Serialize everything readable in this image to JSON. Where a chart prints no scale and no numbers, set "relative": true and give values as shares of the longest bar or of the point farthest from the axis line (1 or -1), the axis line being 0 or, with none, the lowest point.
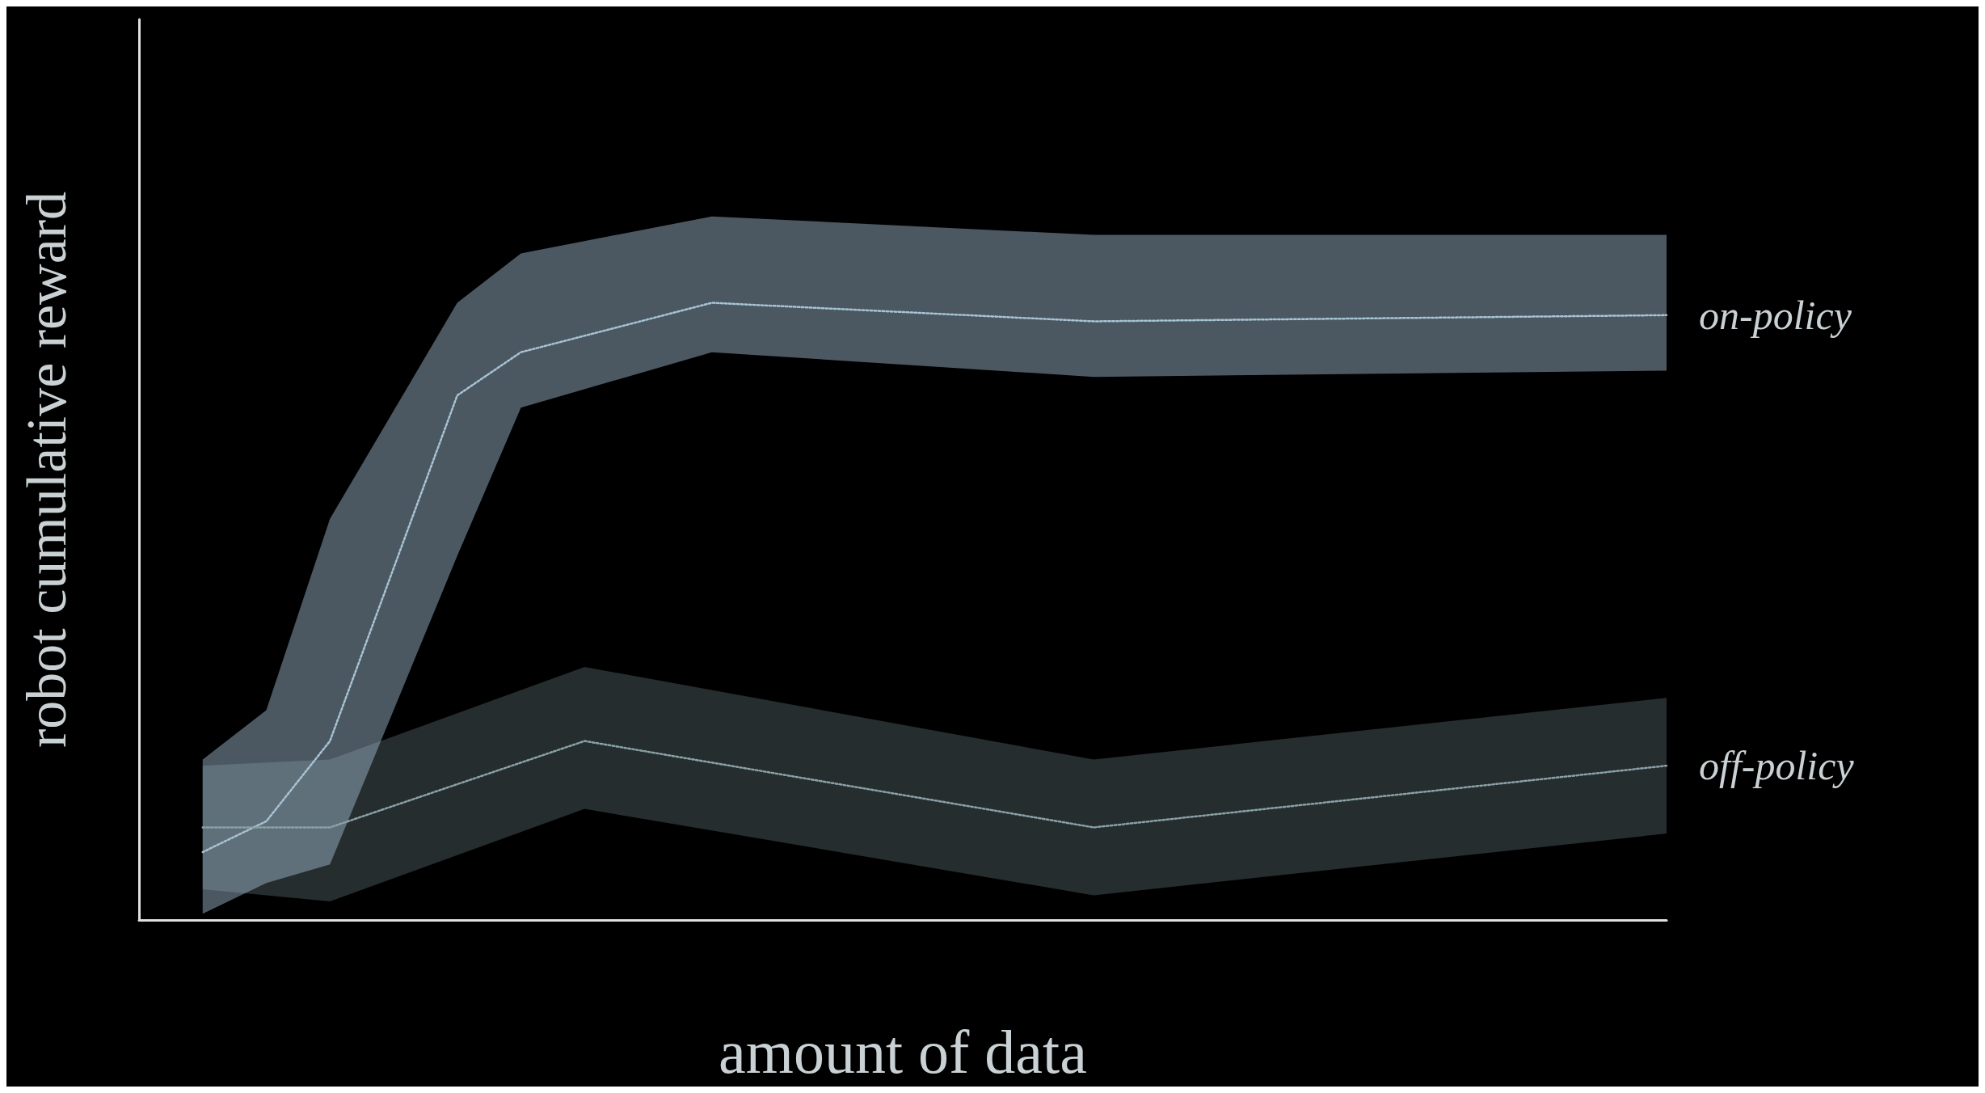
{
  "chart_data": {
    "type": "line",
    "relative": true,
    "xlabel": "amount of data",
    "ylabel": "robot cumulative reward",
    "line_style": "dotted",
    "marker": "none",
    "grid": false,
    "legend": false,
    "categories": [
      null,
      null,
      null,
      null,
      null,
      null,
      null,
      null,
      null,
      null,
      null,
      null,
      null,
      null,
      null,
      null,
      null,
      null,
      null,
      null,
      null,
      null,
      null,
      null,
      null
    ],
    "series": [
      {
        "name": "on-policy",
        "color": "#a8c4d6",
        "values": [
          null,
          0.11,
          0.16,
          0.29,
          null,
          0.85,
          0.92,
          null,
          null,
          1.0,
          null,
          null,
          null,
          null,
          null,
          0.97,
          null,
          null,
          null,
          null,
          null,
          null,
          null,
          null,
          0.98
        ],
        "lower": [
          null,
          0.01,
          0.06,
          0.09,
          null,
          0.59,
          0.83,
          null,
          null,
          0.92,
          null,
          null,
          null,
          null,
          null,
          0.88,
          null,
          null,
          null,
          null,
          null,
          null,
          null,
          null,
          0.89
        ],
        "upper": [
          null,
          0.26,
          0.34,
          0.65,
          null,
          1.0,
          1.08,
          null,
          null,
          1.14,
          null,
          null,
          null,
          null,
          null,
          1.11,
          null,
          null,
          null,
          null,
          null,
          null,
          null,
          null,
          1.11
        ]
      },
      {
        "name": "off-policy",
        "color": "#8aa2a8",
        "values": [
          null,
          0.15,
          null,
          0.15,
          null,
          null,
          null,
          0.29,
          null,
          null,
          null,
          null,
          null,
          null,
          null,
          0.15,
          null,
          null,
          null,
          null,
          null,
          null,
          null,
          null,
          0.25
        ],
        "lower": [
          null,
          0.05,
          null,
          0.03,
          null,
          null,
          null,
          0.18,
          null,
          null,
          null,
          null,
          null,
          null,
          null,
          0.04,
          null,
          null,
          null,
          null,
          null,
          null,
          null,
          null,
          0.14
        ],
        "upper": [
          null,
          0.25,
          null,
          0.26,
          null,
          null,
          null,
          0.41,
          null,
          null,
          null,
          null,
          null,
          null,
          null,
          0.26,
          null,
          null,
          null,
          null,
          null,
          null,
          null,
          null,
          0.36
        ]
      }
    ]
  }
}
